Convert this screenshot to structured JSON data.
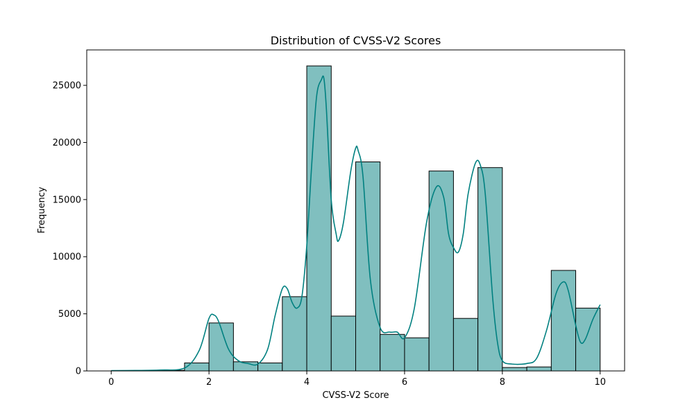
{
  "chart_data": {
    "type": "bar",
    "title": "Distribution of CVSS-V2 Scores",
    "xlabel": "CVSS-V2 Score",
    "ylabel": "Frequency",
    "xlim": [
      -0.5,
      10.5
    ],
    "ylim": [
      0,
      28100
    ],
    "xticks": [
      0,
      2,
      4,
      6,
      8,
      10
    ],
    "yticks": [
      0,
      5000,
      10000,
      15000,
      20000,
      25000
    ],
    "bin_width": 0.5,
    "bins": [
      {
        "x0": 0.0,
        "x1": 0.5,
        "count": 15
      },
      {
        "x0": 0.5,
        "x1": 1.0,
        "count": 20
      },
      {
        "x0": 1.0,
        "x1": 1.5,
        "count": 50
      },
      {
        "x0": 1.5,
        "x1": 2.0,
        "count": 700
      },
      {
        "x0": 2.0,
        "x1": 2.5,
        "count": 4200
      },
      {
        "x0": 2.5,
        "x1": 3.0,
        "count": 800
      },
      {
        "x0": 3.0,
        "x1": 3.5,
        "count": 700
      },
      {
        "x0": 3.5,
        "x1": 4.0,
        "count": 6500
      },
      {
        "x0": 4.0,
        "x1": 4.5,
        "count": 26700
      },
      {
        "x0": 4.5,
        "x1": 5.0,
        "count": 4800
      },
      {
        "x0": 5.0,
        "x1": 5.5,
        "count": 18300
      },
      {
        "x0": 5.5,
        "x1": 6.0,
        "count": 3200
      },
      {
        "x0": 6.0,
        "x1": 6.5,
        "count": 2900
      },
      {
        "x0": 6.5,
        "x1": 7.0,
        "count": 17500
      },
      {
        "x0": 7.0,
        "x1": 7.5,
        "count": 4600
      },
      {
        "x0": 7.5,
        "x1": 8.0,
        "count": 17800
      },
      {
        "x0": 8.0,
        "x1": 8.5,
        "count": 300
      },
      {
        "x0": 8.5,
        "x1": 9.0,
        "count": 350
      },
      {
        "x0": 9.0,
        "x1": 9.5,
        "count": 8800
      },
      {
        "x0": 9.5,
        "x1": 10.0,
        "count": 5500
      }
    ],
    "kde": {
      "x": [
        0.0,
        0.5,
        1.0,
        1.5,
        1.8,
        2.0,
        2.1,
        2.2,
        2.4,
        2.6,
        2.8,
        3.0,
        3.2,
        3.35,
        3.5,
        3.6,
        3.7,
        3.8,
        3.9,
        4.0,
        4.1,
        4.2,
        4.3,
        4.35,
        4.4,
        4.5,
        4.6,
        4.65,
        4.75,
        4.9,
        5.0,
        5.05,
        5.15,
        5.3,
        5.5,
        5.7,
        5.85,
        6.0,
        6.2,
        6.45,
        6.65,
        6.8,
        6.9,
        7.0,
        7.1,
        7.2,
        7.3,
        7.45,
        7.55,
        7.65,
        7.8,
        7.9,
        8.0,
        8.2,
        8.5,
        8.7,
        8.9,
        9.1,
        9.25,
        9.35,
        9.5,
        9.6,
        9.7,
        9.85,
        10.0
      ],
      "y": [
        30,
        40,
        80,
        250,
        1800,
        4600,
        4900,
        4300,
        1900,
        900,
        650,
        600,
        1900,
        4800,
        7200,
        7200,
        6000,
        5500,
        6500,
        11000,
        18000,
        24000,
        25500,
        25600,
        23000,
        15000,
        12000,
        11400,
        13000,
        17500,
        19500,
        19300,
        17000,
        8000,
        3800,
        3400,
        3400,
        2900,
        5500,
        13000,
        16100,
        15200,
        12000,
        10800,
        10400,
        12000,
        15500,
        18200,
        18000,
        15500,
        6500,
        2500,
        900,
        600,
        650,
        1100,
        3500,
        6800,
        7800,
        7000,
        4000,
        2500,
        2800,
        4500,
        5800
      ]
    },
    "colors": {
      "bar_fill": "#80bfbf",
      "bar_edge": "#000000",
      "kde_line": "#008080"
    },
    "grid": false,
    "legend": "none"
  }
}
